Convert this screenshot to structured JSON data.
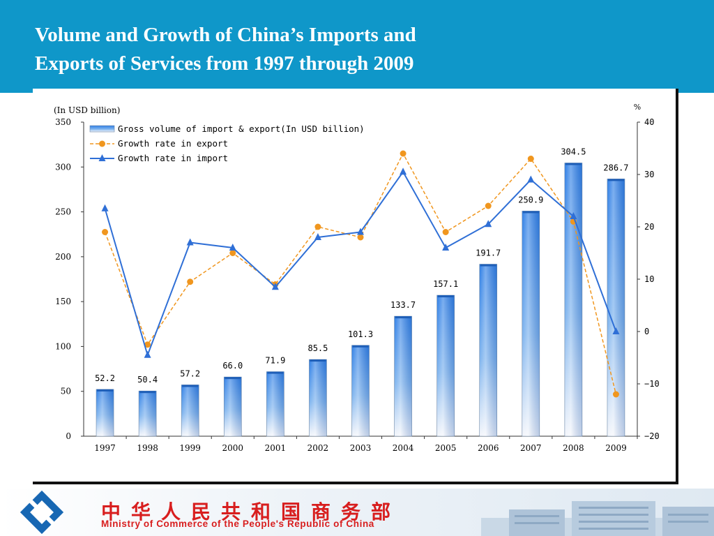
{
  "slide": {
    "title_line1": "Volume and Growth of China’s Imports and",
    "title_line2": "Exports of Services from 1997 through 2009",
    "colors": {
      "header_bg": "#0f97c9",
      "title_text": "#ffffff",
      "ministry_text": "#d81e1e"
    }
  },
  "footer": {
    "ministry_cn": "中华人民共和国商务部",
    "ministry_en": "Ministry of Commerce of the People's Republic of China",
    "logo_icon": "mofcom-logo-icon",
    "building_image": "ministry-building-image"
  },
  "chart_data": {
    "type": "bar",
    "categories": [
      "1997",
      "1998",
      "1999",
      "2000",
      "2001",
      "2002",
      "2003",
      "2004",
      "2005",
      "2006",
      "2007",
      "2008",
      "2009"
    ],
    "left_axis_unit": "(In USD billion)",
    "right_axis_unit": "%",
    "ylim_left": [
      0,
      350
    ],
    "ylim_right": [
      -20,
      40
    ],
    "left_ticks": [
      "0",
      "50",
      "100",
      "150",
      "200",
      "250",
      "300",
      "350"
    ],
    "right_ticks": [
      "−20",
      "−10",
      "0",
      "10",
      "20",
      "30",
      "40"
    ],
    "left_tick_values": [
      0,
      50,
      100,
      150,
      200,
      250,
      300,
      350
    ],
    "right_tick_values": [
      -20,
      -10,
      0,
      10,
      20,
      30,
      40
    ],
    "grid": false,
    "legend_position": "top-left",
    "series": [
      {
        "name": "Gross volume of import & export(In USD billion)",
        "type": "bar",
        "axis": "left",
        "color": "#4a8fe0",
        "values": [
          52.2,
          50.4,
          57.2,
          66.0,
          71.9,
          85.5,
          101.3,
          133.7,
          157.1,
          191.7,
          250.9,
          304.5,
          286.7
        ],
        "labels": [
          "52.2",
          "50.4",
          "57.2",
          "66.0",
          "71.9",
          "85.5",
          "101.3",
          "133.7",
          "157.1",
          "191.7",
          "250.9",
          "304.5",
          "286.7"
        ]
      },
      {
        "name": "Growth rate in export",
        "type": "line",
        "axis": "right",
        "color": "#f0961e",
        "style": "dashed",
        "marker": "circle",
        "values": [
          19,
          -2.5,
          9.5,
          15,
          9,
          20,
          18,
          34,
          19,
          24,
          33,
          21,
          -12
        ]
      },
      {
        "name": "Growth rate in import",
        "type": "line",
        "axis": "right",
        "color": "#2f6fd6",
        "style": "solid",
        "marker": "triangle",
        "values": [
          23.5,
          -4.5,
          17,
          16,
          8.5,
          18,
          19,
          30.5,
          16,
          20.5,
          29,
          22,
          0
        ]
      }
    ]
  }
}
